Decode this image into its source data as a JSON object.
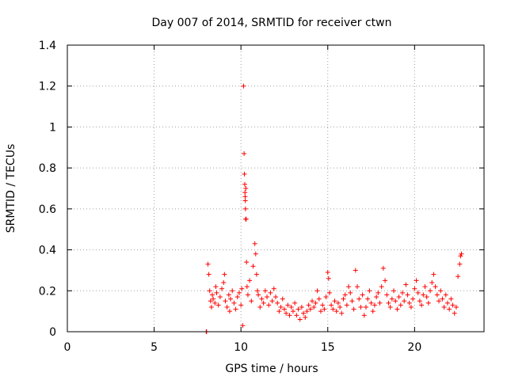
{
  "chart_data": {
    "type": "scatter",
    "title": "Day 007 of 2014, SRMTID for receiver ctwn",
    "xlabel": "GPS time / hours",
    "ylabel": "SRMTID / TECUs",
    "xlim": [
      0,
      24
    ],
    "ylim": [
      0,
      1.4
    ],
    "xticks": [
      0,
      5,
      10,
      15,
      20
    ],
    "yticks": [
      0,
      0.2,
      0.4,
      0.6,
      0.8,
      1,
      1.2,
      1.4
    ],
    "xtick_labels": [
      "0",
      "5",
      "10",
      "15",
      "20"
    ],
    "ytick_labels": [
      "0",
      "0.2",
      "0.4",
      "0.6",
      "0.8",
      "1",
      "1.2",
      "1.4"
    ],
    "grid": true,
    "marker": "+",
    "color": "#ff0000",
    "series": [
      {
        "name": "SRMTID",
        "x": [
          8.0,
          8.02,
          8.1,
          8.15,
          8.2,
          8.25,
          8.3,
          8.35,
          8.4,
          8.5,
          8.55,
          8.6,
          8.7,
          8.8,
          8.9,
          9.0,
          9.05,
          9.1,
          9.2,
          9.3,
          9.35,
          9.4,
          9.5,
          9.6,
          9.7,
          9.8,
          9.9,
          10.0,
          10.05,
          10.1,
          10.15,
          10.18,
          10.2,
          10.22,
          10.23,
          10.24,
          10.25,
          10.26,
          10.27,
          10.28,
          10.3,
          10.32,
          10.35,
          10.4,
          10.5,
          10.6,
          10.7,
          10.8,
          10.85,
          10.9,
          10.95,
          11.0,
          11.1,
          11.2,
          11.3,
          11.4,
          11.5,
          11.6,
          11.7,
          11.8,
          11.9,
          12.0,
          12.1,
          12.2,
          12.3,
          12.4,
          12.5,
          12.6,
          12.7,
          12.8,
          12.9,
          13.0,
          13.1,
          13.2,
          13.3,
          13.4,
          13.5,
          13.6,
          13.7,
          13.8,
          13.9,
          14.0,
          14.1,
          14.2,
          14.3,
          14.4,
          14.5,
          14.6,
          14.7,
          14.8,
          14.9,
          15.0,
          15.05,
          15.1,
          15.2,
          15.3,
          15.4,
          15.5,
          15.6,
          15.7,
          15.8,
          15.9,
          16.0,
          16.1,
          16.2,
          16.3,
          16.4,
          16.5,
          16.6,
          16.7,
          16.8,
          16.9,
          17.0,
          17.1,
          17.2,
          17.3,
          17.4,
          17.5,
          17.6,
          17.7,
          17.8,
          17.9,
          18.0,
          18.1,
          18.2,
          18.3,
          18.4,
          18.5,
          18.6,
          18.7,
          18.8,
          18.9,
          19.0,
          19.1,
          19.2,
          19.3,
          19.4,
          19.5,
          19.6,
          19.7,
          19.8,
          19.9,
          20.0,
          20.1,
          20.2,
          20.3,
          20.4,
          20.5,
          20.6,
          20.7,
          20.8,
          20.9,
          21.0,
          21.1,
          21.2,
          21.3,
          21.4,
          21.5,
          21.6,
          21.7,
          21.8,
          21.9,
          22.0,
          22.1,
          22.2,
          22.3,
          22.4,
          22.5,
          22.6,
          22.65,
          22.7
        ],
        "y": [
          0.0,
          0.0,
          0.33,
          0.28,
          0.2,
          0.15,
          0.12,
          0.18,
          0.16,
          0.14,
          0.22,
          0.19,
          0.13,
          0.17,
          0.21,
          0.24,
          0.28,
          0.15,
          0.12,
          0.18,
          0.1,
          0.16,
          0.2,
          0.14,
          0.11,
          0.17,
          0.19,
          0.13,
          0.21,
          0.03,
          1.2,
          0.87,
          0.77,
          0.72,
          0.68,
          0.66,
          0.64,
          0.6,
          0.55,
          0.7,
          0.55,
          0.34,
          0.22,
          0.18,
          0.25,
          0.15,
          0.32,
          0.43,
          0.38,
          0.28,
          0.2,
          0.18,
          0.12,
          0.16,
          0.14,
          0.2,
          0.17,
          0.13,
          0.19,
          0.15,
          0.21,
          0.17,
          0.14,
          0.1,
          0.12,
          0.16,
          0.11,
          0.09,
          0.13,
          0.08,
          0.12,
          0.1,
          0.14,
          0.08,
          0.11,
          0.06,
          0.12,
          0.09,
          0.07,
          0.1,
          0.13,
          0.11,
          0.15,
          0.12,
          0.14,
          0.2,
          0.16,
          0.1,
          0.13,
          0.11,
          0.17,
          0.29,
          0.26,
          0.19,
          0.13,
          0.11,
          0.15,
          0.1,
          0.14,
          0.12,
          0.09,
          0.16,
          0.18,
          0.13,
          0.22,
          0.19,
          0.15,
          0.11,
          0.3,
          0.22,
          0.16,
          0.12,
          0.18,
          0.08,
          0.12,
          0.16,
          0.2,
          0.14,
          0.1,
          0.13,
          0.17,
          0.19,
          0.14,
          0.22,
          0.31,
          0.25,
          0.18,
          0.14,
          0.12,
          0.16,
          0.2,
          0.15,
          0.11,
          0.17,
          0.13,
          0.19,
          0.15,
          0.23,
          0.18,
          0.14,
          0.12,
          0.16,
          0.21,
          0.25,
          0.19,
          0.15,
          0.13,
          0.18,
          0.22,
          0.17,
          0.14,
          0.2,
          0.24,
          0.28,
          0.22,
          0.18,
          0.15,
          0.2,
          0.16,
          0.12,
          0.18,
          0.14,
          0.11,
          0.16,
          0.13,
          0.09,
          0.12,
          0.27,
          0.33,
          0.37,
          0.38
        ]
      }
    ]
  }
}
